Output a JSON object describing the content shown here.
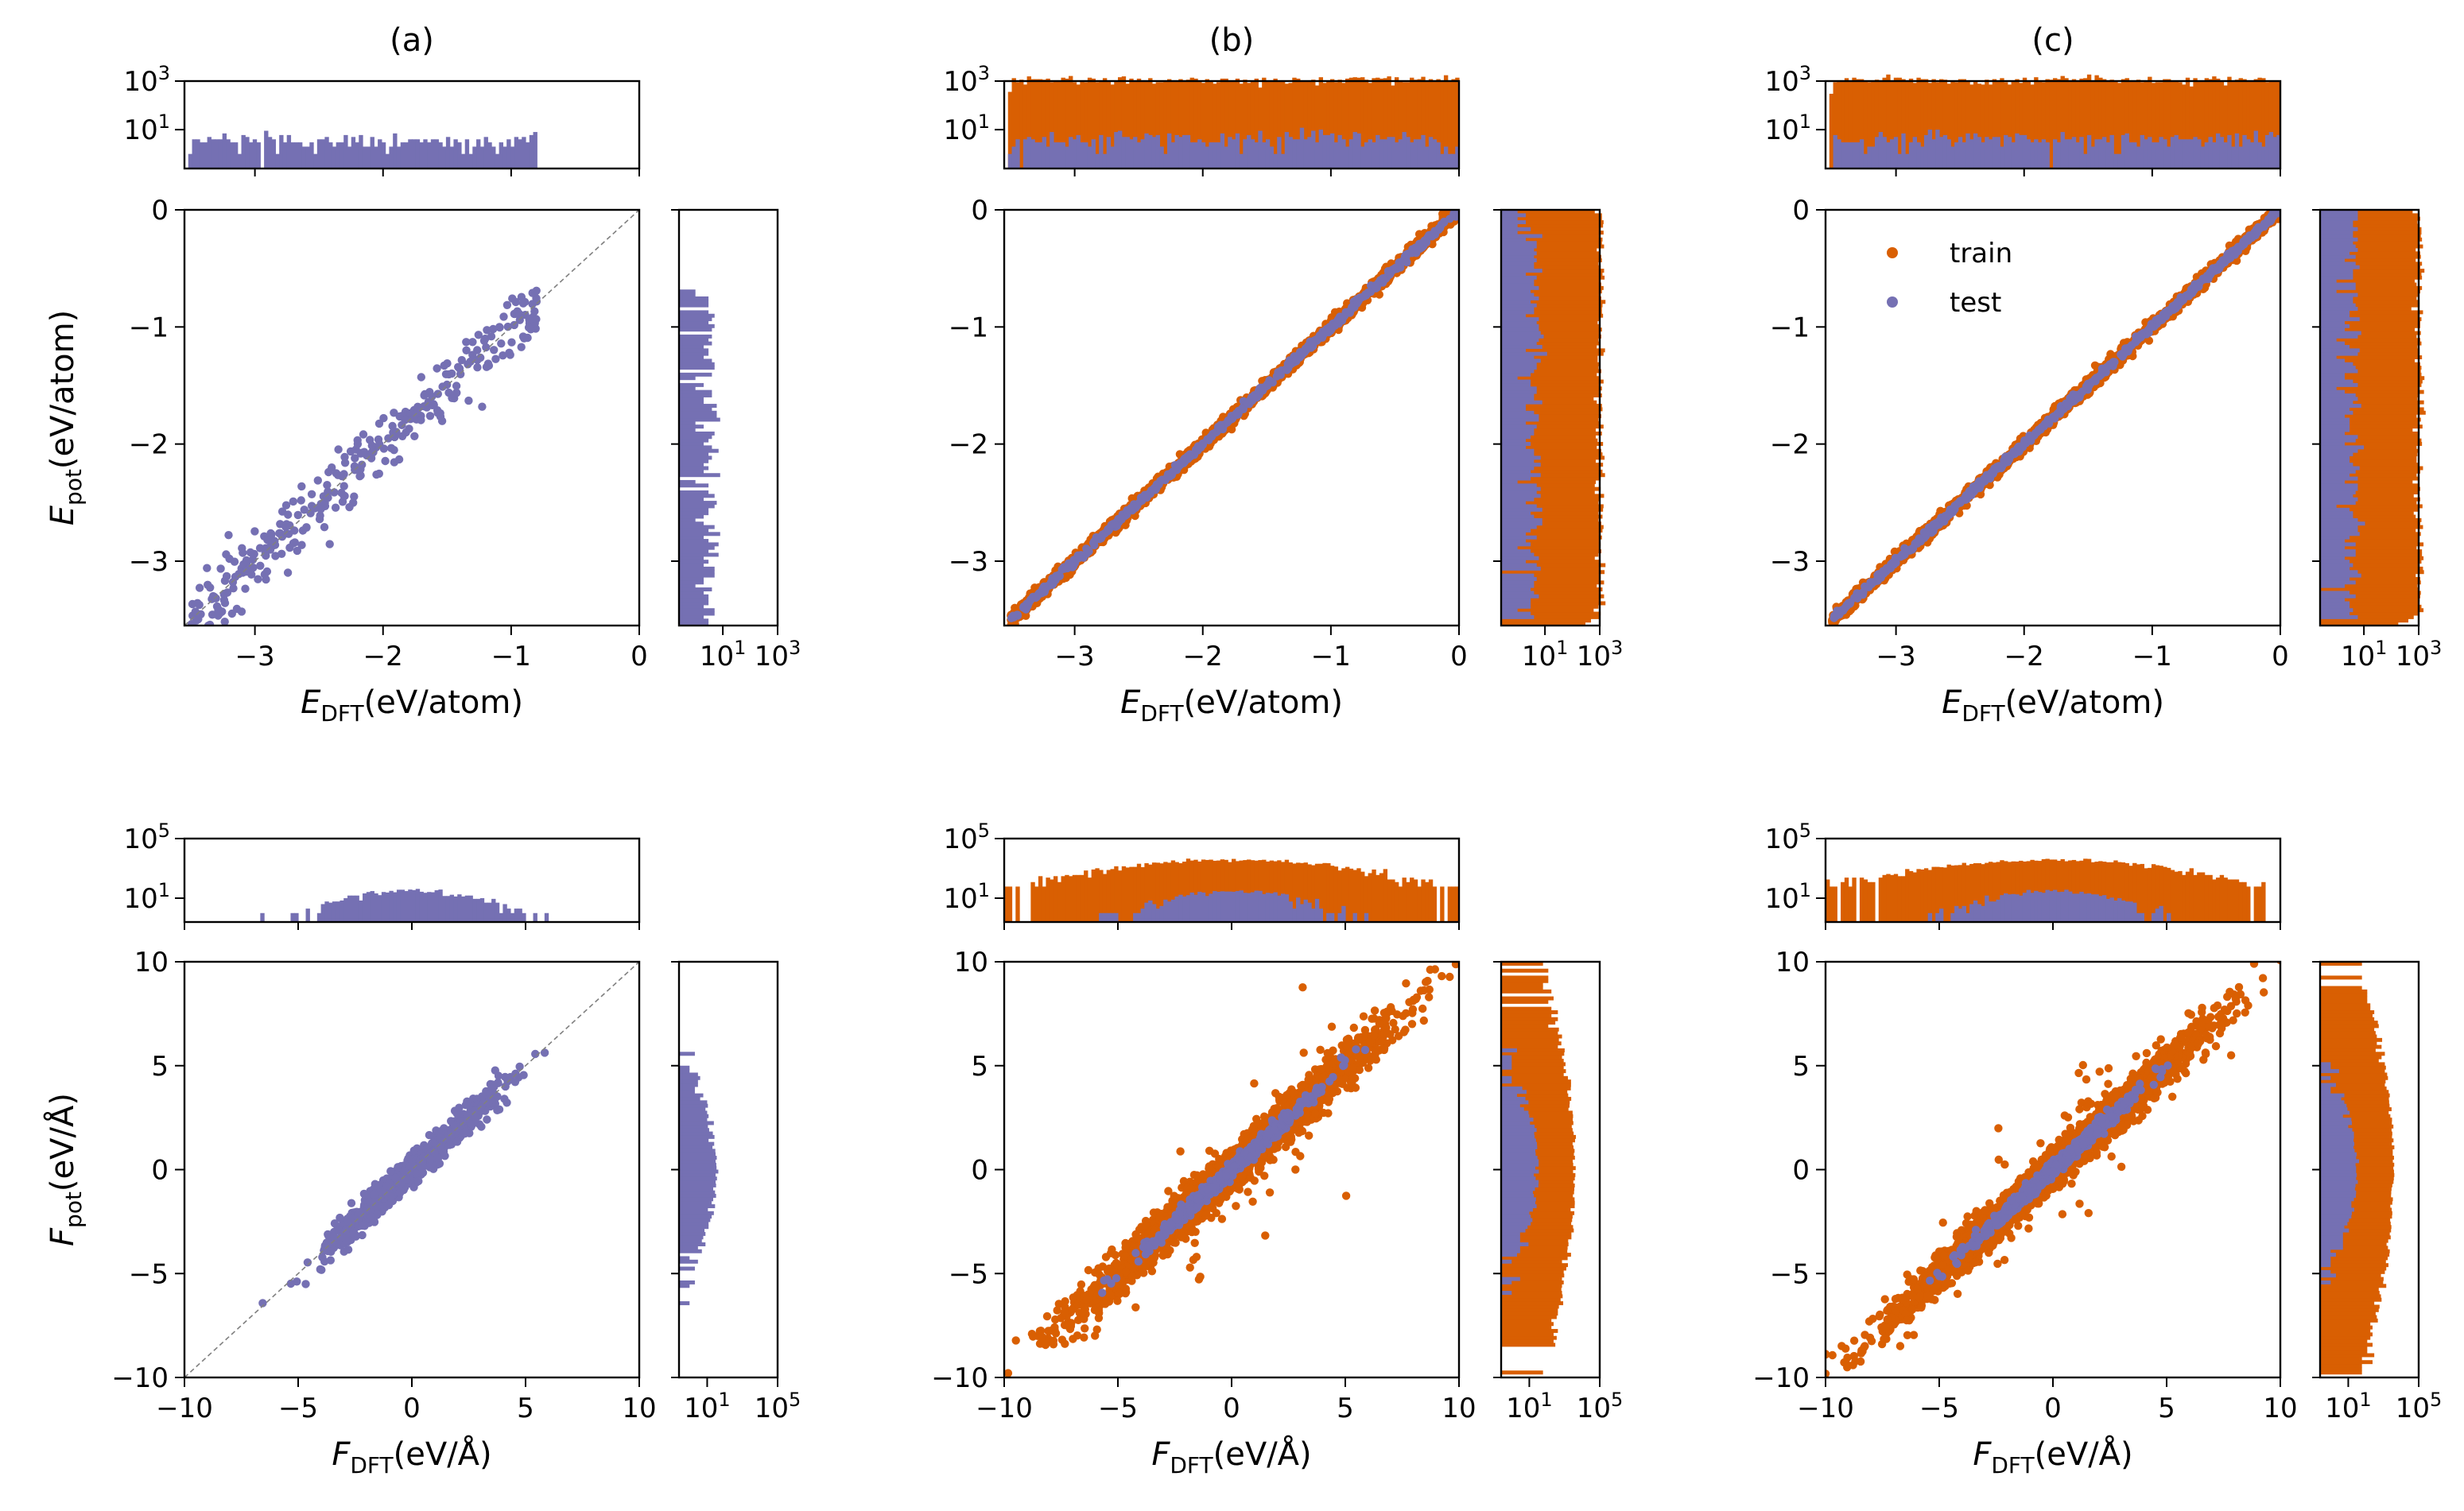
{
  "colors": {
    "train": "#d95f02",
    "test": "#7570b3",
    "diagonal": "#808080"
  },
  "panel_titles": [
    "(a)",
    "(b)",
    "(c)"
  ],
  "legend": {
    "train": "train",
    "test": "test"
  },
  "labels": {
    "energy_y_main": "E",
    "energy_y_sub": "pot",
    "energy_y_unit": "(eV/atom)",
    "energy_x_main": "E",
    "energy_x_sub": "DFT",
    "energy_x_unit": "(eV/atom)",
    "force_y_main": "F",
    "force_y_sub": "pot",
    "force_y_unit": "(eV/Å)",
    "force_x_main": "F",
    "force_x_sub": "DFT",
    "force_x_unit": "(eV/Å)"
  },
  "chart_data": [
    {
      "type": "scatter",
      "id": "a-energy",
      "title": "(a)",
      "xlabel": "E_DFT(eV/atom)",
      "ylabel": "E_pot(eV/atom)",
      "xlim": [
        -3.55,
        0
      ],
      "ylim": [
        -3.55,
        0
      ],
      "xticks": [
        "−3",
        "−2",
        "−1",
        "0"
      ],
      "yticks": [
        "−3",
        "−2",
        "−1",
        "0"
      ],
      "diagonal": true,
      "series": [
        {
          "name": "test",
          "color": "#7570b3",
          "spread": 0.13,
          "x_range": [
            -3.5,
            -0.8
          ],
          "count": 320
        }
      ],
      "marginal_x": {
        "log": true,
        "ticks": [
          "10^1",
          "10^3"
        ],
        "series": [
          "test"
        ]
      },
      "marginal_y": {
        "log": true,
        "ticks": [
          "10^1",
          "10^3"
        ],
        "series": [
          "test"
        ]
      }
    },
    {
      "type": "scatter",
      "id": "b-energy",
      "title": "(b)",
      "xlabel": "E_DFT(eV/atom)",
      "ylabel": "",
      "xlim": [
        -3.55,
        0
      ],
      "ylim": [
        -3.55,
        0
      ],
      "xticks": [
        "−3",
        "−2",
        "−1",
        "0"
      ],
      "yticks": [
        "−3",
        "−2",
        "−1",
        "0"
      ],
      "series": [
        {
          "name": "train",
          "color": "#d95f02",
          "spread": 0.03,
          "x_range": [
            -3.5,
            0
          ],
          "count": 2200
        },
        {
          "name": "test",
          "color": "#7570b3",
          "spread": 0.015,
          "x_range": [
            -3.5,
            0
          ],
          "count": 500
        }
      ],
      "marginal_x": {
        "log": true,
        "ticks": [
          "10^1",
          "10^3"
        ],
        "series": [
          "train",
          "test"
        ]
      },
      "marginal_y": {
        "log": true,
        "ticks": [
          "10^1",
          "10^3"
        ],
        "series": [
          "train",
          "test"
        ]
      }
    },
    {
      "type": "scatter",
      "id": "c-energy",
      "title": "(c)",
      "xlabel": "E_DFT(eV/atom)",
      "ylabel": "",
      "xlim": [
        -3.55,
        0
      ],
      "ylim": [
        -3.55,
        0
      ],
      "xticks": [
        "−3",
        "−2",
        "−1",
        "0"
      ],
      "yticks": [
        "−3",
        "−2",
        "−1",
        "0"
      ],
      "legend_position": "upper-left",
      "series": [
        {
          "name": "train",
          "color": "#d95f02",
          "spread": 0.03,
          "x_range": [
            -3.5,
            0
          ],
          "count": 2200
        },
        {
          "name": "test",
          "color": "#7570b3",
          "spread": 0.015,
          "x_range": [
            -3.5,
            0
          ],
          "count": 500
        }
      ],
      "marginal_x": {
        "log": true,
        "ticks": [
          "10^1",
          "10^3"
        ],
        "series": [
          "train",
          "test"
        ]
      },
      "marginal_y": {
        "log": true,
        "ticks": [
          "10^1",
          "10^3"
        ],
        "series": [
          "train",
          "test"
        ]
      }
    },
    {
      "type": "scatter",
      "id": "a-force",
      "title": "",
      "xlabel": "F_DFT(eV/Å)",
      "ylabel": "F_pot(eV/Å)",
      "xlim": [
        -10,
        10
      ],
      "ylim": [
        -10,
        10
      ],
      "xticks": [
        "−10",
        "−5",
        "0",
        "5",
        "10"
      ],
      "yticks": [
        "−10",
        "−5",
        "0",
        "5",
        "10"
      ],
      "diagonal": true,
      "series": [
        {
          "name": "test",
          "color": "#7570b3",
          "spread": 0.35,
          "x_range": [
            -8.3,
            8
          ],
          "count": 900
        }
      ],
      "marginal_x": {
        "log": true,
        "ticks": [
          "10^1",
          "10^5"
        ],
        "series": [
          "test"
        ]
      },
      "marginal_y": {
        "log": true,
        "ticks": [
          "10^1",
          "10^5"
        ],
        "series": [
          "test"
        ]
      }
    },
    {
      "type": "scatter",
      "id": "b-force",
      "title": "",
      "xlabel": "F_DFT(eV/Å)",
      "ylabel": "",
      "xlim": [
        -10,
        10
      ],
      "ylim": [
        -10,
        10
      ],
      "xticks": [
        "−10",
        "−5",
        "0",
        "5",
        "10"
      ],
      "yticks": [
        "−10",
        "−5",
        "0",
        "5",
        "10"
      ],
      "series": [
        {
          "name": "train",
          "color": "#d95f02",
          "spread": 0.45,
          "x_range": [
            -10,
            10
          ],
          "count": 3000
        },
        {
          "name": "test",
          "color": "#7570b3",
          "spread": 0.15,
          "x_range": [
            -6,
            6
          ],
          "count": 800
        }
      ],
      "marginal_x": {
        "log": true,
        "ticks": [
          "10^1",
          "10^5"
        ],
        "series": [
          "train",
          "test"
        ]
      },
      "marginal_y": {
        "log": true,
        "ticks": [
          "10^1",
          "10^5"
        ],
        "series": [
          "train",
          "test"
        ]
      }
    },
    {
      "type": "scatter",
      "id": "c-force",
      "title": "",
      "xlabel": "F_DFT(eV/Å)",
      "ylabel": "",
      "xlim": [
        -10,
        10
      ],
      "ylim": [
        -10,
        10
      ],
      "xticks": [
        "−10",
        "−5",
        "0",
        "5",
        "10"
      ],
      "yticks": [
        "−10",
        "−5",
        "0",
        "5",
        "10"
      ],
      "series": [
        {
          "name": "train",
          "color": "#d95f02",
          "spread": 0.4,
          "x_range": [
            -10,
            10
          ],
          "count": 3000
        },
        {
          "name": "test",
          "color": "#7570b3",
          "spread": 0.15,
          "x_range": [
            -6,
            6
          ],
          "count": 800
        }
      ],
      "marginal_x": {
        "log": true,
        "ticks": [
          "10^1",
          "10^5"
        ],
        "series": [
          "train",
          "test"
        ]
      },
      "marginal_y": {
        "log": true,
        "ticks": [
          "10^1",
          "10^5"
        ],
        "series": [
          "train",
          "test"
        ]
      }
    }
  ]
}
